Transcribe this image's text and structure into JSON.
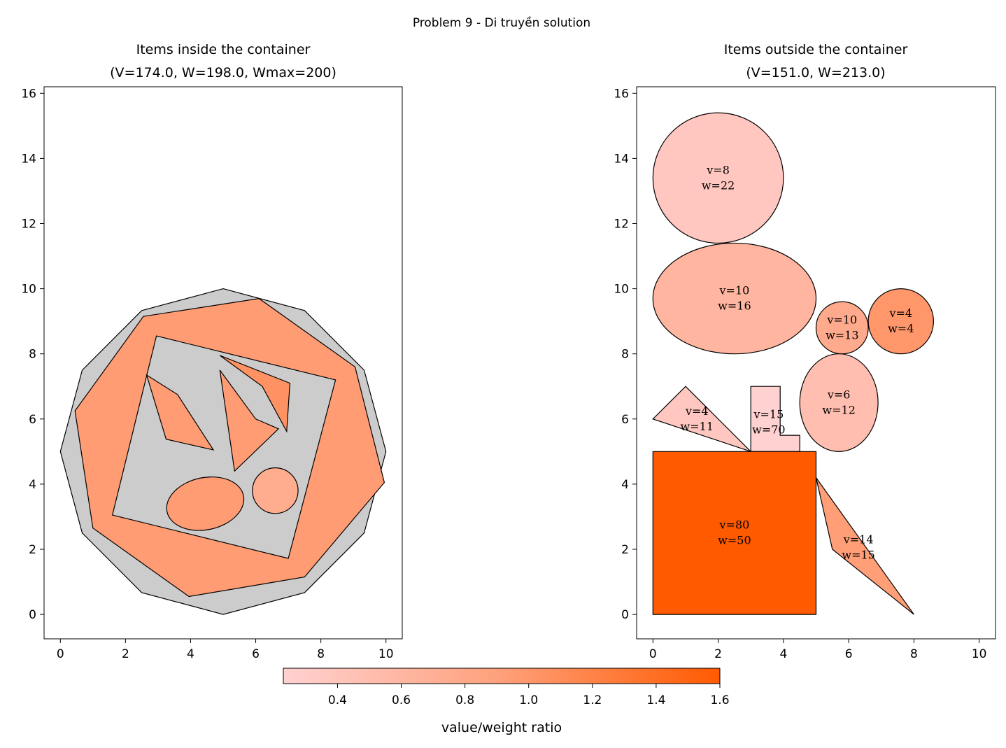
{
  "figure_title": "Problem 9 - Di truyền solution",
  "colorbar": {
    "label": "value/weight ratio",
    "min": 0.23,
    "max": 1.6,
    "ticks": [
      "0.4",
      "0.6",
      "0.8",
      "1.0",
      "1.2",
      "1.4",
      "1.6"
    ],
    "tick_values": [
      0.4,
      0.6,
      0.8,
      1.0,
      1.2,
      1.4,
      1.6
    ],
    "color_low": "#ffd1d1",
    "color_mid": "#ffa07a",
    "color_high": "#ff5a00"
  },
  "chart_data": [
    {
      "type": "scatter",
      "title_line1": "Items inside the container",
      "title_line2": "(V=174.0, W=198.0, Wmax=200)",
      "xlim": [
        -0.5,
        10.5
      ],
      "ylim": [
        -0.75,
        16.2
      ],
      "xticks": [
        "0",
        "2",
        "4",
        "6",
        "8",
        "10"
      ],
      "xtick_values": [
        0,
        2,
        4,
        6,
        8,
        10
      ],
      "yticks": [
        "0",
        "2",
        "4",
        "6",
        "8",
        "10",
        "12",
        "14",
        "16"
      ],
      "ytick_values": [
        0,
        2,
        4,
        6,
        8,
        10,
        12,
        14,
        16
      ],
      "shapes": [
        {
          "kind": "polygon",
          "fill": "#cccccc",
          "points": [
            [
              5,
              10
            ],
            [
              7.5,
              9.33
            ],
            [
              9.33,
              7.5
            ],
            [
              10,
              5
            ],
            [
              9.33,
              2.5
            ],
            [
              7.5,
              0.67
            ],
            [
              5,
              0
            ],
            [
              2.5,
              0.67
            ],
            [
              0.67,
              2.5
            ],
            [
              0,
              5
            ],
            [
              0.67,
              7.5
            ],
            [
              2.5,
              9.33
            ]
          ]
        },
        {
          "kind": "polygon",
          "ratio": 0.95,
          "points": [
            [
              2.55,
              9.15
            ],
            [
              6.1,
              9.7
            ],
            [
              9.05,
              7.6
            ],
            [
              9.95,
              4.05
            ],
            [
              7.5,
              1.15
            ],
            [
              3.95,
              0.55
            ],
            [
              1.0,
              2.65
            ],
            [
              0.45,
              6.25
            ]
          ]
        },
        {
          "kind": "polygon",
          "fill": "#cccccc",
          "points": [
            [
              2.95,
              8.55
            ],
            [
              8.45,
              7.2
            ],
            [
              7.0,
              1.72
            ],
            [
              1.6,
              3.05
            ]
          ]
        },
        {
          "kind": "polygon",
          "ratio": 0.95,
          "points": [
            [
              2.65,
              7.35
            ],
            [
              3.6,
              6.75
            ],
            [
              4.7,
              5.05
            ],
            [
              3.25,
              5.38
            ]
          ]
        },
        {
          "kind": "polygon",
          "ratio": 0.95,
          "points": [
            [
              4.9,
              7.5
            ],
            [
              6.0,
              6.0
            ],
            [
              6.7,
              5.7
            ],
            [
              5.35,
              4.4
            ]
          ]
        },
        {
          "kind": "polygon",
          "ratio": 1.05,
          "points": [
            [
              4.9,
              7.95
            ],
            [
              6.2,
              7.0
            ],
            [
              6.95,
              5.62
            ],
            [
              7.05,
              7.1
            ]
          ]
        },
        {
          "kind": "ellipse",
          "ratio": 0.95,
          "cx": 4.45,
          "cy": 3.4,
          "rx": 1.2,
          "ry": 0.8,
          "rot": -12
        },
        {
          "kind": "ellipse",
          "ratio": 0.75,
          "cx": 6.6,
          "cy": 3.8,
          "rx": 0.7,
          "ry": 0.7,
          "rot": 0
        }
      ]
    },
    {
      "type": "scatter",
      "title_line1": "Items outside the container",
      "title_line2": "(V=151.0, W=213.0)",
      "xlim": [
        -0.5,
        10.5
      ],
      "ylim": [
        -0.75,
        16.2
      ],
      "xticks": [
        "0",
        "2",
        "4",
        "6",
        "8",
        "10"
      ],
      "xtick_values": [
        0,
        2,
        4,
        6,
        8,
        10
      ],
      "yticks": [
        "0",
        "2",
        "4",
        "6",
        "8",
        "10",
        "12",
        "14",
        "16"
      ],
      "ytick_values": [
        0,
        2,
        4,
        6,
        8,
        10,
        12,
        14,
        16
      ],
      "shapes": [
        {
          "kind": "ellipse",
          "ratio": 0.3636,
          "cx": 2.0,
          "cy": 13.4,
          "rx": 2.0,
          "ry": 2.0,
          "rot": 0,
          "label_v": "v=8",
          "label_w": "w=22",
          "lx": 2.0,
          "ly": 13.4
        },
        {
          "kind": "ellipse",
          "ratio": 0.625,
          "cx": 2.5,
          "cy": 9.7,
          "rx": 2.5,
          "ry": 1.7,
          "rot": 0,
          "label_v": "v=10",
          "label_w": "w=16",
          "lx": 2.5,
          "ly": 9.7
        },
        {
          "kind": "ellipse",
          "ratio": 0.7692,
          "cx": 5.8,
          "cy": 8.8,
          "rx": 0.8,
          "ry": 0.8,
          "rot": 0,
          "label_v": "v=10",
          "label_w": "w=13",
          "lx": 5.8,
          "ly": 8.8
        },
        {
          "kind": "ellipse",
          "ratio": 1.0,
          "cx": 7.6,
          "cy": 9.0,
          "rx": 1.0,
          "ry": 1.0,
          "rot": 0,
          "label_v": "v=4",
          "label_w": "w=4",
          "lx": 7.6,
          "ly": 9.0
        },
        {
          "kind": "ellipse",
          "ratio": 0.5,
          "cx": 5.7,
          "cy": 6.5,
          "rx": 1.2,
          "ry": 1.5,
          "rot": 0,
          "label_v": "v=6",
          "label_w": "w=12",
          "lx": 5.7,
          "ly": 6.5
        },
        {
          "kind": "polygon",
          "ratio": 0.3636,
          "points": [
            [
              0,
              6
            ],
            [
              1,
              7
            ],
            [
              3,
              5
            ]
          ],
          "label_v": "v=4",
          "label_w": "w=11",
          "lx": 1.35,
          "ly": 6.0
        },
        {
          "kind": "polygon",
          "ratio": 0.2143,
          "points": [
            [
              3,
              5
            ],
            [
              3,
              7
            ],
            [
              3.9,
              7
            ],
            [
              3.9,
              5.5
            ],
            [
              4.5,
              5.5
            ],
            [
              4.5,
              5
            ]
          ],
          "label_v": "v=15",
          "label_w": "w=70",
          "lx": 3.55,
          "ly": 5.9
        },
        {
          "kind": "polygon",
          "ratio": 1.6,
          "points": [
            [
              0,
              0
            ],
            [
              5,
              0
            ],
            [
              5,
              5
            ],
            [
              0,
              5
            ]
          ],
          "label_v": "v=80",
          "label_w": "w=50",
          "lx": 2.5,
          "ly": 2.5
        },
        {
          "kind": "polygon",
          "ratio": 0.9333,
          "points": [
            [
              5,
              4.2
            ],
            [
              8,
              0
            ],
            [
              5.5,
              2.0
            ]
          ],
          "label_v": "v=14",
          "label_w": "w=15",
          "lx": 6.3,
          "ly": 2.05
        }
      ]
    }
  ]
}
